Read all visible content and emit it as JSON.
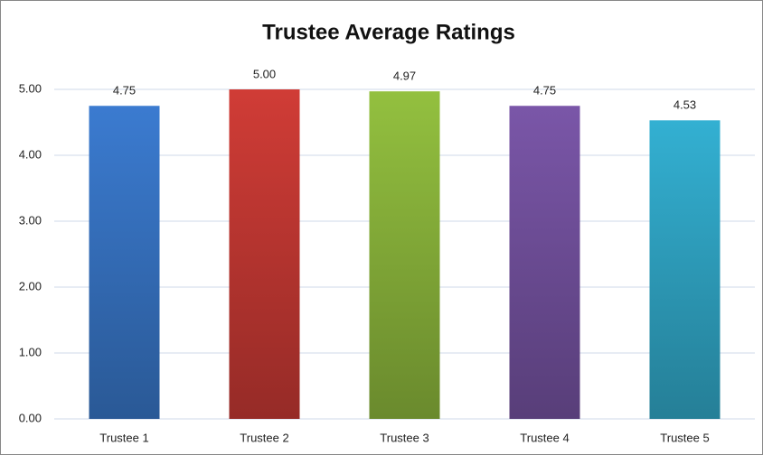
{
  "chart_data": {
    "type": "bar",
    "title": "Trustee Average Ratings",
    "categories": [
      "Trustee 1",
      "Trustee 2",
      "Trustee 3",
      "Trustee 4",
      "Trustee 5"
    ],
    "values": [
      4.75,
      5,
      4.97,
      4.75,
      4.53
    ],
    "value_labels": [
      "4.75",
      "5.00",
      "4.97",
      "4.75",
      "4.53"
    ],
    "colors": [
      "#3b7bd0",
      "#d03c36",
      "#93c03f",
      "#7a56a8",
      "#33b0d2"
    ],
    "ylim": [
      0,
      5
    ],
    "yticks": [
      {
        "value": 0,
        "label": "0.00"
      },
      {
        "value": 1,
        "label": "1.00"
      },
      {
        "value": 2,
        "label": "2.00"
      },
      {
        "value": 3,
        "label": "3.00"
      },
      {
        "value": 4,
        "label": "4.00"
      },
      {
        "value": 5,
        "label": "5.00"
      }
    ],
    "grid": true
  }
}
